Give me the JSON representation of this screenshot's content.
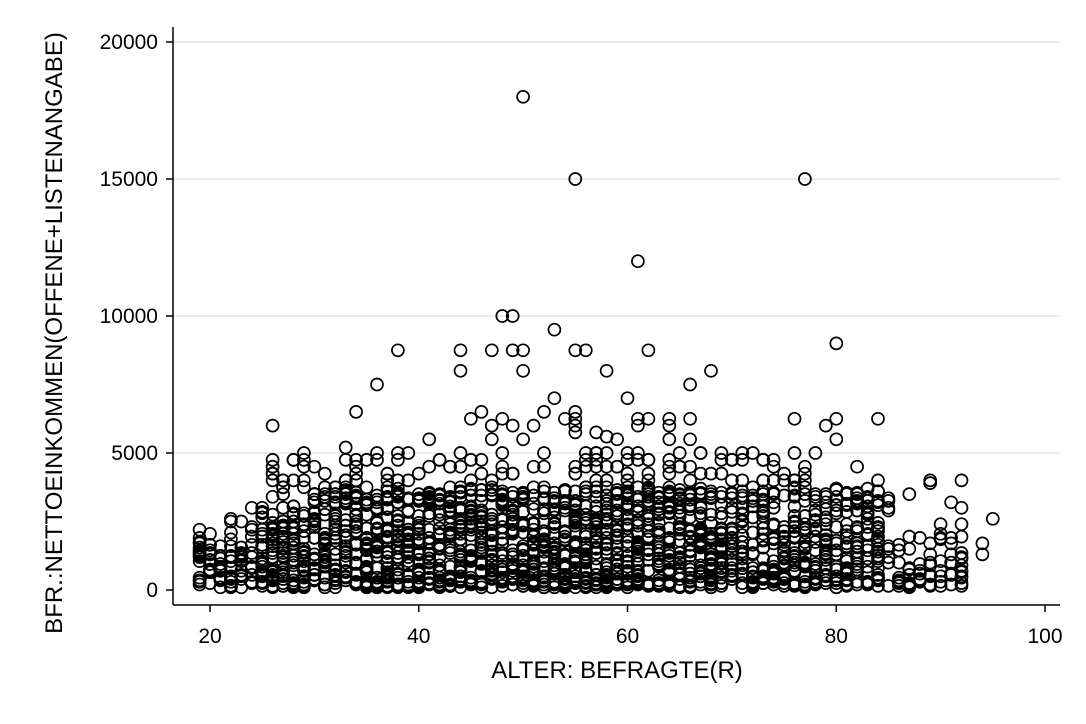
{
  "chart_data": {
    "type": "scatter",
    "xlabel": "ALTER: BEFRAGTE(R)",
    "ylabel": "BFR.:NETTOEINKOMMEN(OFFENE+LISTENANGABE)",
    "xlim": [
      18,
      100
    ],
    "ylim": [
      0,
      20000
    ],
    "xticks": [
      20,
      40,
      60,
      80,
      100
    ],
    "xtick_labels": [
      "20",
      "40",
      "60",
      "80",
      "100"
    ],
    "yticks": [
      0,
      5000,
      10000,
      15000,
      20000
    ],
    "ytick_labels": [
      "0",
      "5000",
      "10000",
      "15000",
      "20000"
    ],
    "grid": "horizontal",
    "marker": "hollow-circle",
    "colors": {
      "marker": "#000000",
      "grid": "#d9d9d9",
      "axis": "#000000"
    },
    "points": [
      [
        50,
        18000
      ],
      [
        55,
        15000
      ],
      [
        77,
        15000
      ],
      [
        61,
        12000
      ],
      [
        48,
        10000
      ],
      [
        49,
        10000
      ],
      [
        53,
        9500
      ],
      [
        80,
        9000
      ],
      [
        38,
        8750
      ],
      [
        44,
        8750
      ],
      [
        47,
        8750
      ],
      [
        49,
        8750
      ],
      [
        50,
        8750
      ],
      [
        55,
        8750
      ],
      [
        56,
        8750
      ],
      [
        62,
        8750
      ],
      [
        44,
        8000
      ],
      [
        50,
        8000
      ],
      [
        58,
        8000
      ],
      [
        68,
        8000
      ],
      [
        36,
        7500
      ],
      [
        66,
        7500
      ],
      [
        53,
        7000
      ],
      [
        60,
        7000
      ],
      [
        34,
        6500
      ],
      [
        46,
        6500
      ],
      [
        52,
        6500
      ],
      [
        55,
        6500
      ],
      [
        45,
        6250
      ],
      [
        48,
        6250
      ],
      [
        54,
        6250
      ],
      [
        55,
        6250
      ],
      [
        61,
        6250
      ],
      [
        62,
        6250
      ],
      [
        64,
        6250
      ],
      [
        66,
        6250
      ],
      [
        76,
        6250
      ],
      [
        80,
        6250
      ],
      [
        84,
        6250
      ],
      [
        26,
        6000
      ],
      [
        47,
        6000
      ],
      [
        49,
        6000
      ],
      [
        51,
        6000
      ],
      [
        55,
        6000
      ],
      [
        61,
        6000
      ],
      [
        64,
        6000
      ],
      [
        79,
        6000
      ],
      [
        55,
        5750
      ],
      [
        57,
        5750
      ],
      [
        58,
        5600
      ],
      [
        41,
        5500
      ],
      [
        47,
        5500
      ],
      [
        50,
        5500
      ],
      [
        59,
        5500
      ],
      [
        64,
        5500
      ],
      [
        66,
        5500
      ],
      [
        80,
        5500
      ],
      [
        33,
        5200
      ],
      [
        60,
        5000
      ],
      [
        38,
        5000
      ],
      [
        44,
        5000
      ],
      [
        48,
        5000
      ],
      [
        52,
        5000
      ],
      [
        56,
        5000
      ],
      [
        61,
        5000
      ],
      [
        65,
        5000
      ],
      [
        67,
        5000
      ],
      [
        69,
        5000
      ],
      [
        72,
        5000
      ],
      [
        76,
        5000
      ],
      [
        78,
        5000
      ],
      [
        82,
        4500
      ],
      [
        74,
        4500
      ],
      [
        70,
        4000
      ],
      [
        71,
        4000
      ],
      [
        73,
        4000
      ],
      [
        77,
        4000
      ],
      [
        84,
        4000
      ],
      [
        89,
        4000
      ],
      [
        92,
        4000
      ],
      [
        28,
        4000
      ],
      [
        32,
        3500
      ],
      [
        87,
        3500
      ],
      [
        81,
        3500
      ],
      [
        91,
        3200
      ],
      [
        85,
        3000
      ],
      [
        92,
        3000
      ],
      [
        95,
        2600
      ],
      [
        90,
        2400
      ],
      [
        92,
        2400
      ],
      [
        26,
        3400
      ],
      [
        89,
        3900
      ],
      [
        83,
        3400
      ],
      [
        94,
        1700
      ],
      [
        94,
        1300
      ],
      [
        92,
        1200
      ],
      [
        92,
        900
      ],
      [
        92,
        700
      ],
      [
        88,
        400
      ],
      [
        86,
        300
      ],
      [
        87,
        800
      ],
      [
        19,
        2200
      ],
      [
        19,
        1700
      ],
      [
        22,
        2600
      ],
      [
        22,
        2500
      ],
      [
        23,
        2500
      ]
    ]
  }
}
